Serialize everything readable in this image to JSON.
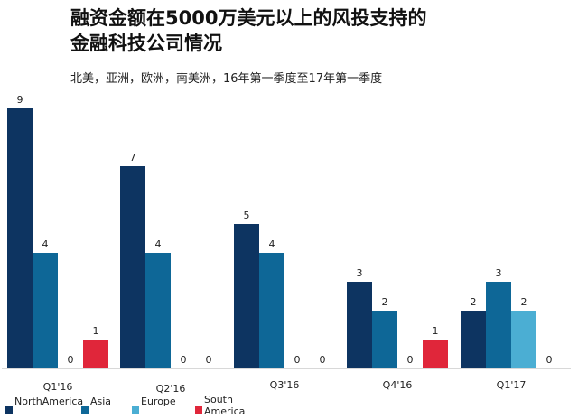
{
  "chart_data": {
    "type": "bar",
    "title": "融资金额在5000万美元以上的风投支持的\n金融科技公司情况",
    "subtitle": "北美，亚洲，欧洲，南美洲，16年第一季度至17年第一季度",
    "categories": [
      "Q1'16",
      "Q2'16",
      "Q3'16",
      "Q4'16",
      "Q1'17"
    ],
    "series": [
      {
        "name": "NorthAmerica",
        "color": "#0d3461",
        "values": [
          9,
          7,
          5,
          3,
          2
        ]
      },
      {
        "name": "Asia",
        "color": "#0e6797",
        "values": [
          4,
          4,
          4,
          2,
          3
        ]
      },
      {
        "name": "Europe",
        "color": "#4baed3",
        "values": [
          0,
          0,
          0,
          0,
          2
        ]
      },
      {
        "name": "South America",
        "color": "#e0263a",
        "values": [
          1,
          0,
          0,
          1,
          0
        ]
      }
    ],
    "ylim": [
      0,
      9
    ],
    "grid": false,
    "legend_position": "bottom-left"
  }
}
